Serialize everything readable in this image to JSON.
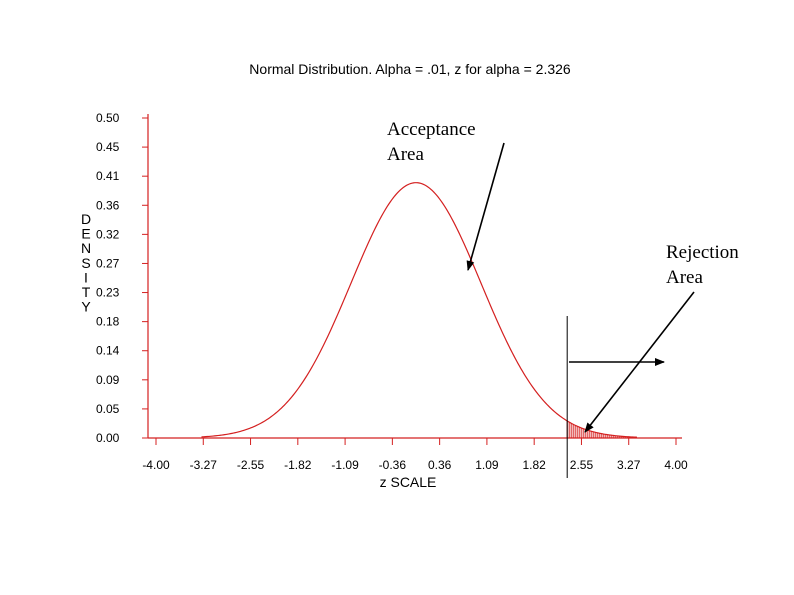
{
  "colors": {
    "curve": "#d42020",
    "axis": "#d42020",
    "text": "#000000",
    "marker": "#000000"
  },
  "chart_data": {
    "type": "line",
    "title": "Normal Distribution. Alpha = .01, z for alpha = 2.326",
    "xlabel": "z SCALE",
    "ylabel": "DENSITY",
    "xlim": [
      -4.0,
      4.0
    ],
    "ylim": [
      0.0,
      0.5
    ],
    "grid": false,
    "legend": "none",
    "x_ticks": [
      "-4.00",
      "-3.27",
      "-2.55",
      "-1.82",
      "-1.09",
      "-0.36",
      "0.36",
      "1.09",
      "1.82",
      "2.55",
      "3.27",
      "4.00"
    ],
    "y_ticks": [
      "0.50",
      "0.45",
      "0.41",
      "0.36",
      "0.32",
      "0.27",
      "0.23",
      "0.18",
      "0.14",
      "0.09",
      "0.05",
      "0.00"
    ],
    "series": [
      {
        "distribution": "normal",
        "mean": 0,
        "sd": 1,
        "x_range": [
          -3.3,
          3.4
        ]
      }
    ],
    "critical_z": 2.326,
    "shaded_region": [
      2.326,
      3.4
    ],
    "annotations": [
      {
        "text": "Acceptance Area",
        "lines": [
          "Acceptance",
          "Area"
        ]
      },
      {
        "text": "Rejection Area",
        "lines": [
          "Rejection",
          "Area"
        ]
      }
    ]
  }
}
